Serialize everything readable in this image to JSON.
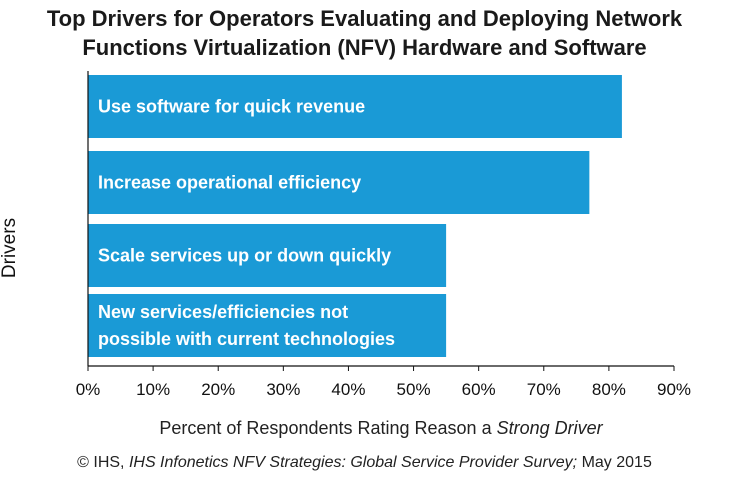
{
  "chart_data": {
    "type": "bar",
    "orientation": "horizontal",
    "title_lines": [
      "Top Drivers for Operators Evaluating and Deploying Network",
      "Functions Virtualization (NFV) Hardware and Software"
    ],
    "ylabel": "Drivers",
    "xlabel_prefix": "Percent of Respondents Rating Reason a ",
    "xlabel_emphasis": "Strong Driver",
    "categories": [
      [
        "Use software for quick revenue"
      ],
      [
        "Increase operational efficiency"
      ],
      [
        "Scale services up or down quickly"
      ],
      [
        "New services/efficiencies not",
        "possible with current technologies"
      ]
    ],
    "values": [
      82,
      77,
      55,
      55
    ],
    "xlim": [
      0,
      90
    ],
    "xticks": [
      "0%",
      "10%",
      "20%",
      "30%",
      "40%",
      "50%",
      "60%",
      "70%",
      "80%",
      "90%"
    ],
    "bar_color": "#1a9ad6",
    "label_color": "#ffffff",
    "grid": false
  },
  "source": {
    "prefix": "© IHS, ",
    "emphasis": "IHS Infonetics NFV Strategies: Global Service Provider Survey;",
    "suffix": " May 2015"
  }
}
